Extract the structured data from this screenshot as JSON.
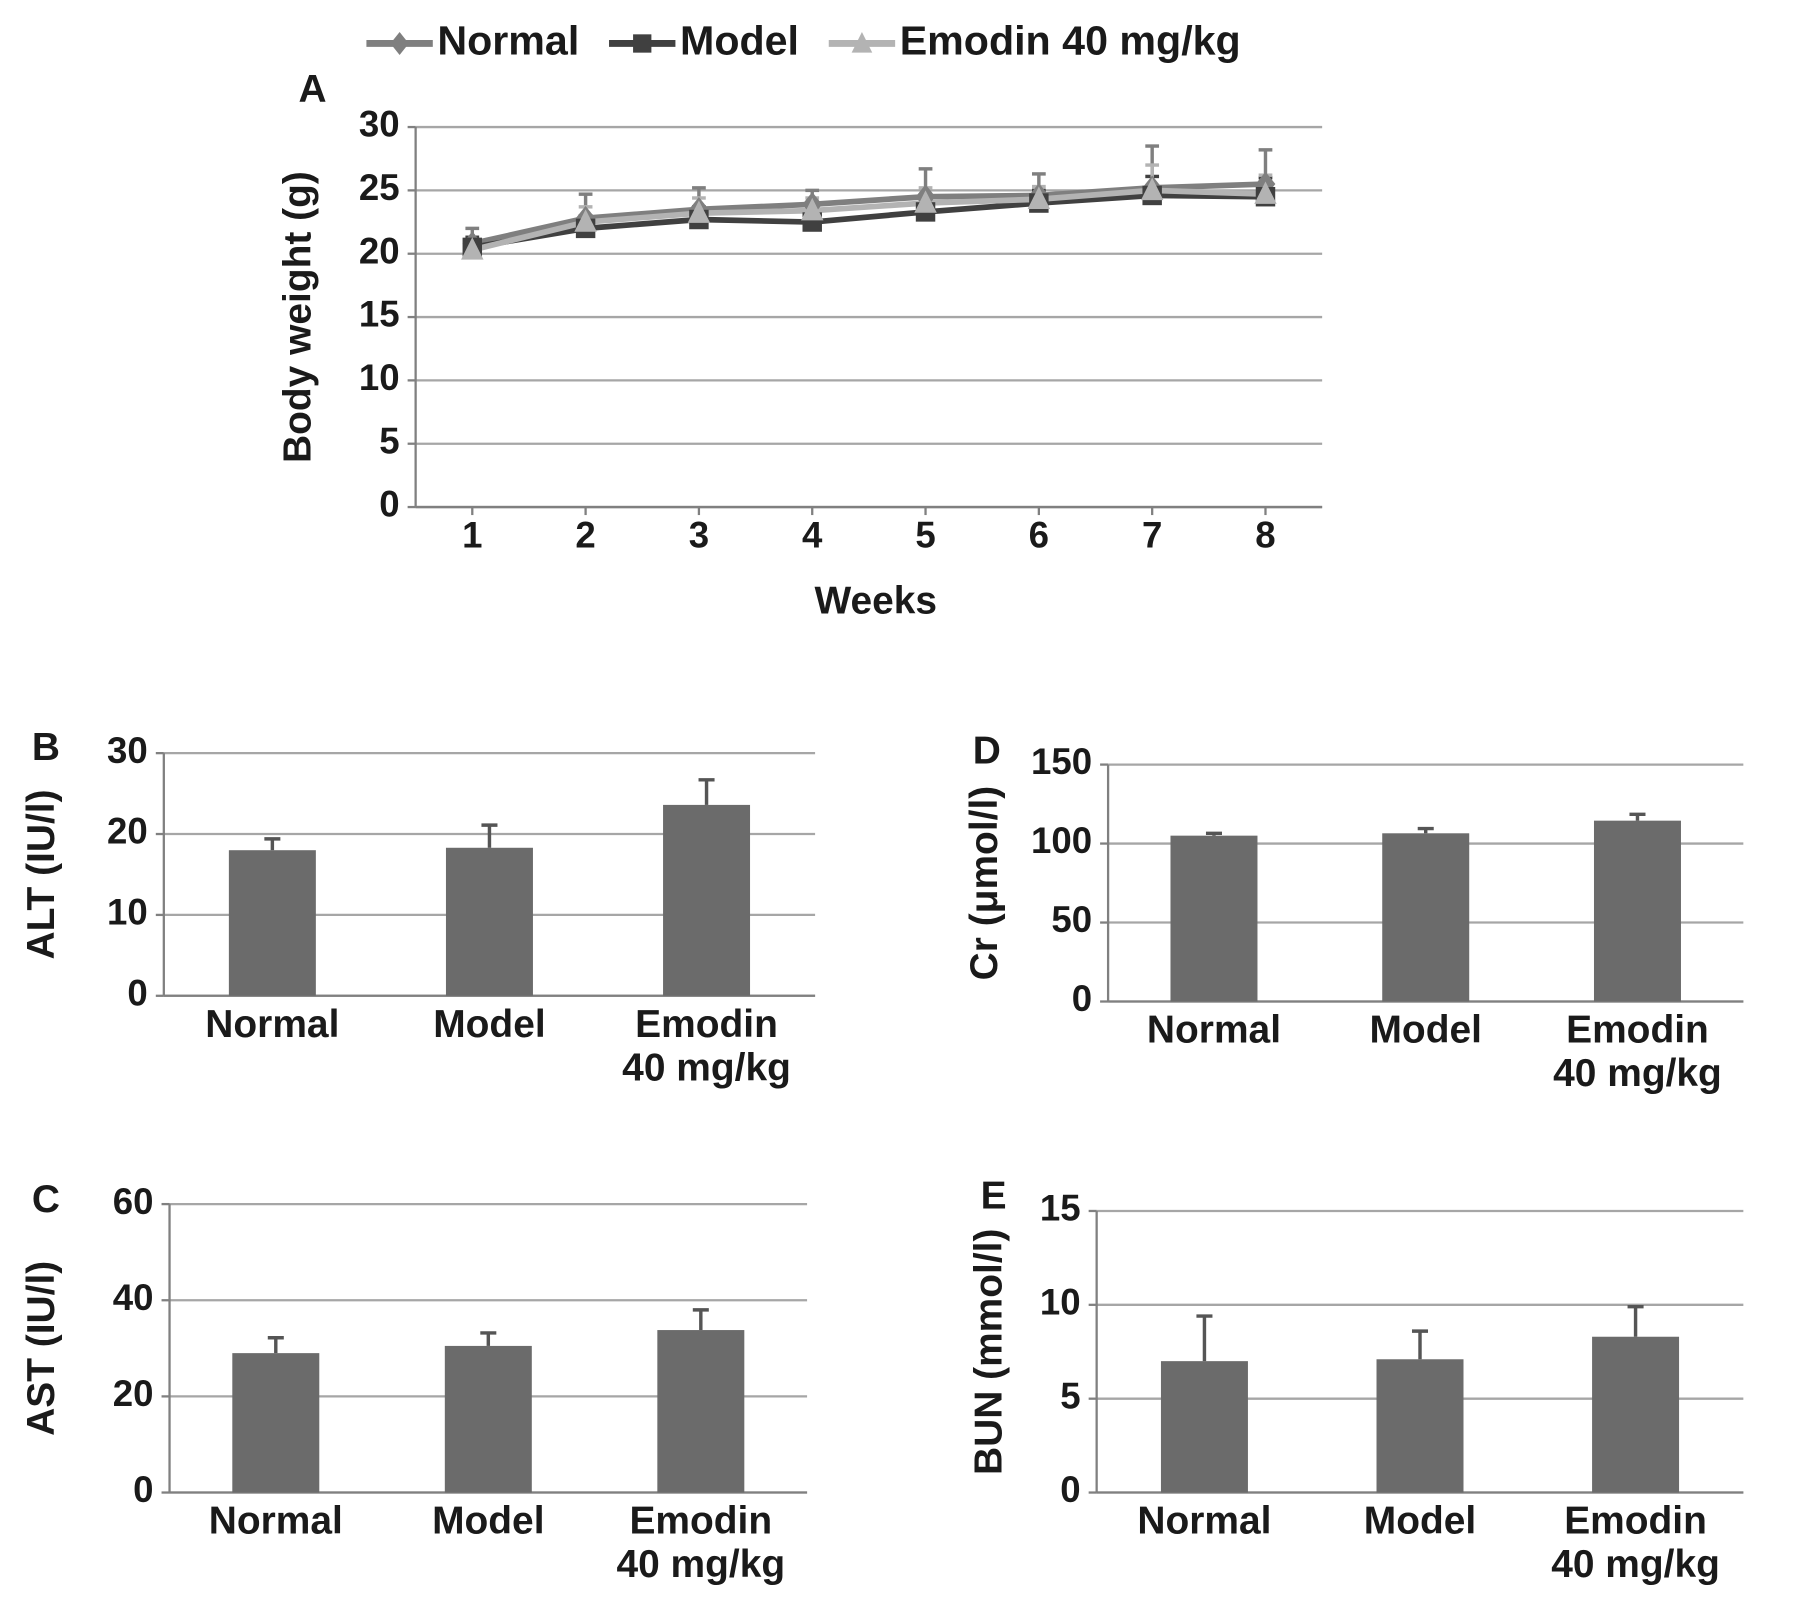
{
  "chart_data": [
    {
      "type": "line",
      "panel_label": "A",
      "y_label": "Body weight (g)",
      "x_label": "Weeks",
      "x": [
        1,
        2,
        3,
        4,
        5,
        6,
        7,
        8
      ],
      "xlim": [
        0.5,
        8.5
      ],
      "xticks": [
        1,
        2,
        3,
        4,
        5,
        6,
        7,
        8
      ],
      "ylim": [
        0,
        30
      ],
      "yticks": [
        0,
        5,
        10,
        15,
        20,
        25,
        30
      ],
      "grid": true,
      "legend": "top",
      "series": [
        {
          "name": "Normal",
          "color": "#7f7f7f",
          "marker": "diamond",
          "values": [
            20.8,
            22.8,
            23.5,
            23.9,
            24.5,
            24.6,
            25.2,
            25.5
          ],
          "errors": [
            1.2,
            1.9,
            1.7,
            1.1,
            2.2,
            1.7,
            3.3,
            2.7
          ]
        },
        {
          "name": "Model",
          "color": "#404040",
          "marker": "square",
          "values": [
            20.5,
            22.0,
            22.7,
            22.5,
            23.3,
            24.0,
            24.6,
            24.5
          ],
          "errors": [
            0.8,
            1.0,
            1.0,
            1.2,
            1.0,
            1.0,
            1.5,
            1.5
          ]
        },
        {
          "name": "Emodin 40 mg/kg",
          "color": "#b3b3b3",
          "marker": "triangle",
          "values": [
            20.3,
            22.5,
            23.2,
            23.4,
            24.0,
            24.3,
            25.0,
            24.7
          ],
          "errors": [
            0.8,
            1.2,
            1.2,
            1.0,
            1.2,
            1.0,
            2.0,
            1.5
          ]
        }
      ]
    },
    {
      "type": "bar",
      "panel_label": "B",
      "y_label": "ALT (IU/l)",
      "categories": [
        "Normal",
        "Model",
        "Emodin 40 mg/kg"
      ],
      "values": [
        18,
        18.3,
        23.6
      ],
      "errors": [
        1.4,
        2.8,
        3.1
      ],
      "color": "#6b6b6b",
      "ylim": [
        0,
        30
      ],
      "yticks": [
        0,
        10,
        20,
        30
      ],
      "grid": true
    },
    {
      "type": "bar",
      "panel_label": "C",
      "y_label": "AST (IU/l)",
      "categories": [
        "Normal",
        "Model",
        "Emodin 40 mg/kg"
      ],
      "values": [
        29,
        30.5,
        33.8
      ],
      "errors": [
        3.2,
        2.7,
        4.2
      ],
      "color": "#6b6b6b",
      "ylim": [
        0,
        60
      ],
      "yticks": [
        0,
        20,
        40,
        60
      ],
      "grid": true
    },
    {
      "type": "bar",
      "panel_label": "D",
      "y_label": "Cr (μmol/l)",
      "categories": [
        "Normal",
        "Model",
        "Emodin 40 mg/kg"
      ],
      "values": [
        105,
        106.5,
        114.5
      ],
      "errors": [
        1.5,
        3,
        4
      ],
      "color": "#6b6b6b",
      "ylim": [
        0,
        150
      ],
      "yticks": [
        0,
        50,
        100,
        150
      ],
      "grid": true
    },
    {
      "type": "bar",
      "panel_label": "E",
      "y_label": "BUN (mmol/l)",
      "categories": [
        "Normal",
        "Model",
        "Emodin 40 mg/kg"
      ],
      "values": [
        7,
        7.1,
        8.3
      ],
      "errors": [
        2.4,
        1.5,
        1.6
      ],
      "color": "#6b6b6b",
      "ylim": [
        0,
        15
      ],
      "yticks": [
        0,
        5,
        10,
        15
      ],
      "grid": true
    }
  ]
}
